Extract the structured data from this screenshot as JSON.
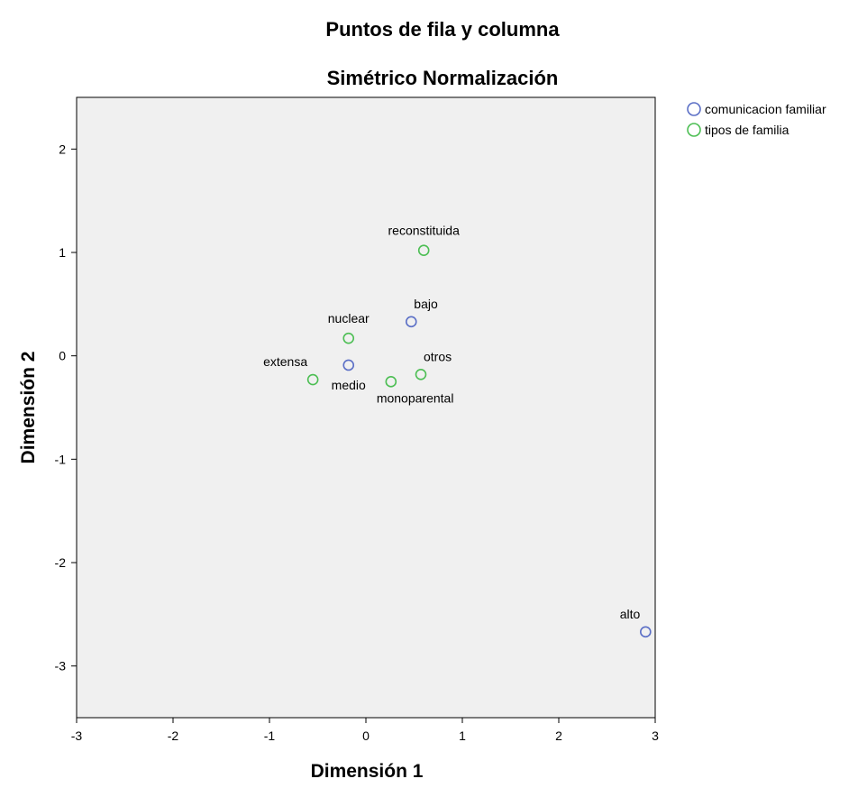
{
  "chart_data": {
    "type": "scatter",
    "title": "Puntos de fila y columna",
    "subtitle": "Simétrico Normalización",
    "xlabel": "Dimensión 1",
    "ylabel": "Dimensión 2",
    "xlim": [
      -3,
      3
    ],
    "ylim": [
      -3.5,
      2.5
    ],
    "xticks": [
      -3,
      -2,
      -1,
      0,
      1,
      2,
      3
    ],
    "yticks": [
      -3,
      -2,
      -1,
      0,
      1,
      2
    ],
    "xtick_labels": [
      "-3",
      "-2",
      "-1",
      "0",
      "1",
      "2",
      "3"
    ],
    "ytick_labels": [
      "-3",
      "-2",
      "-1",
      "0",
      "1",
      "2"
    ],
    "grid": false,
    "legend_position": "top-right outside",
    "series": [
      {
        "name": "comunicacion familiar",
        "color": "#5B6FC6",
        "points": [
          {
            "label": "bajo",
            "x": 0.47,
            "y": 0.33,
            "label_pos": "above-right"
          },
          {
            "label": "medio",
            "x": -0.18,
            "y": -0.09,
            "label_pos": "below"
          },
          {
            "label": "alto",
            "x": 2.9,
            "y": -2.67,
            "label_pos": "above-left"
          }
        ]
      },
      {
        "name": "tipos de familia",
        "color": "#4CBE53",
        "points": [
          {
            "label": "reconstituida",
            "x": 0.6,
            "y": 1.02,
            "label_pos": "above"
          },
          {
            "label": "nuclear",
            "x": -0.18,
            "y": 0.17,
            "label_pos": "above"
          },
          {
            "label": "extensa",
            "x": -0.55,
            "y": -0.23,
            "label_pos": "above-left"
          },
          {
            "label": "otros",
            "x": 0.57,
            "y": -0.18,
            "label_pos": "above-right"
          },
          {
            "label": "monoparental",
            "x": 0.26,
            "y": -0.25,
            "label_pos": "below-right"
          }
        ]
      }
    ]
  }
}
